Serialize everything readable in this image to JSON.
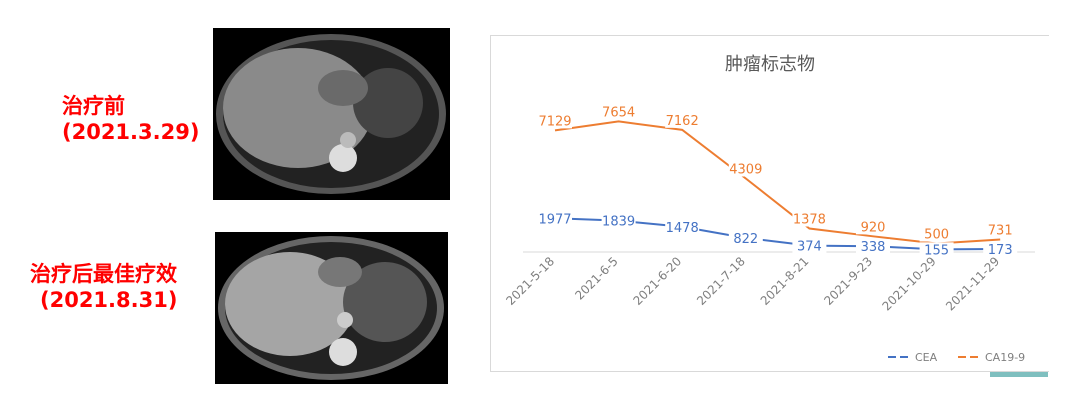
{
  "labels": {
    "before": "治疗前",
    "before_date": "(2021.3.29)",
    "after": "治疗后最佳疗效",
    "after_date": "(2021.8.31)"
  },
  "chart_data": {
    "type": "line",
    "title": "肿瘤标志物",
    "categories": [
      "2021-5-18",
      "2021-6-5",
      "2021-6-20",
      "2021-7-18",
      "2021-8-21",
      "2021-9-23",
      "2021-10-29",
      "2021-11-29"
    ],
    "series": [
      {
        "name": "CEA",
        "color": "#4472c4",
        "values": [
          1977,
          1839,
          1478,
          822,
          374,
          338,
          155,
          173
        ]
      },
      {
        "name": "CA19-9",
        "color": "#ed7d31",
        "values": [
          7129,
          7654,
          7162,
          4309,
          1378,
          920,
          500,
          731
        ]
      }
    ],
    "ylim": [
      0,
      8500
    ],
    "grid": false,
    "legend": "bottom-right",
    "data_labels": true
  }
}
